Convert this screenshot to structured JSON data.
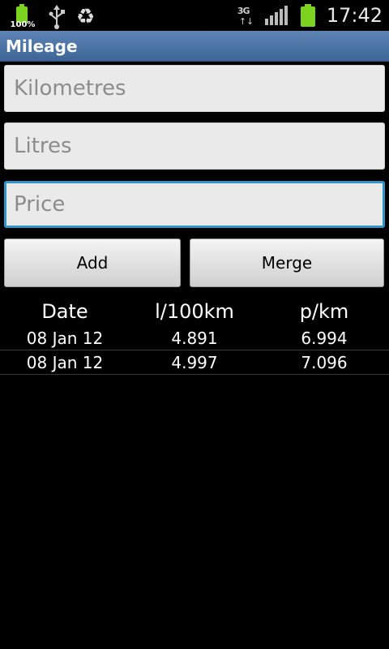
{
  "status_bar": {
    "battery_small_percent": "100%",
    "usb_icon": "usb-icon",
    "recycle_icon": "recycle-icon",
    "network_type": "3G",
    "clock": "17:42"
  },
  "title_bar": {
    "title": "Mileage"
  },
  "form": {
    "kilometres_placeholder": "Kilometres",
    "litres_placeholder": "Litres",
    "price_placeholder": "Price",
    "add_label": "Add",
    "merge_label": "Merge"
  },
  "table": {
    "headers": [
      "Date",
      "l/100km",
      "p/km"
    ],
    "rows": [
      [
        "08 Jan 12",
        "4.891",
        "6.994"
      ],
      [
        "08 Jan 12",
        "4.997",
        "7.096"
      ]
    ]
  },
  "colors": {
    "title_bar": "#4a73a6",
    "focus_border": "#2f97c8",
    "battery": "#7cd320"
  }
}
